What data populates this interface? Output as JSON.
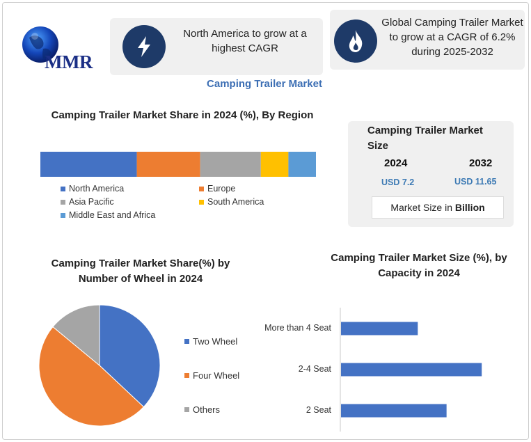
{
  "brand": {
    "logo_text": "MMR"
  },
  "callouts": [
    {
      "icon": "lightning-icon",
      "text": "North America to grow at a highest CAGR"
    },
    {
      "icon": "flame-icon",
      "text": "Global Camping Trailer Market to grow at a CAGR of 6.2% during 2025-2032"
    }
  ],
  "main_title": "Camping Trailer Market",
  "market_size": {
    "title": "Camping Trailer Market Size",
    "years": [
      "2024",
      "2032"
    ],
    "values": [
      "USD 7.2",
      "USD 11.65"
    ],
    "unit_prefix": "Market Size in ",
    "unit_bold": "Billion"
  },
  "colors": {
    "blue": "#4472c4",
    "orange": "#ed7d31",
    "gray": "#a5a5a5",
    "yellow": "#ffc000",
    "lightblue": "#5b9bd5",
    "accent_title": "#3d6fb4",
    "icon_bg": "#1e3a68"
  },
  "chart_data": [
    {
      "type": "bar",
      "orientation": "stacked-horizontal",
      "title": "Camping Trailer Market Share in 2024 (%), By Region",
      "series": [
        {
          "name": "North America",
          "values": [
            35
          ],
          "color": "#4472c4"
        },
        {
          "name": "Europe",
          "values": [
            23
          ],
          "color": "#ed7d31"
        },
        {
          "name": "Asia Pacific",
          "values": [
            22
          ],
          "color": "#a5a5a5"
        },
        {
          "name": "South America",
          "values": [
            10
          ],
          "color": "#ffc000"
        },
        {
          "name": "Middle East and Africa",
          "values": [
            10
          ],
          "color": "#5b9bd5"
        }
      ],
      "legend_position": "bottom"
    },
    {
      "type": "pie",
      "title": "Camping Trailer Market Share(%) by  Number of Wheel  in 2024",
      "categories": [
        "Two Wheel",
        "Four Wheel",
        "Others"
      ],
      "values": [
        37,
        49,
        14
      ],
      "colors": [
        "#4472c4",
        "#ed7d31",
        "#a5a5a5"
      ],
      "legend_position": "right"
    },
    {
      "type": "bar",
      "orientation": "horizontal",
      "title": "Camping Trailer Market Size (%), by Capacity in 2024",
      "categories": [
        "More than 4 Seat",
        "2-4 Seat",
        "2 Seat"
      ],
      "values": [
        24,
        44,
        33
      ],
      "xlim": [
        0,
        47
      ],
      "color": "#4472c4"
    }
  ]
}
